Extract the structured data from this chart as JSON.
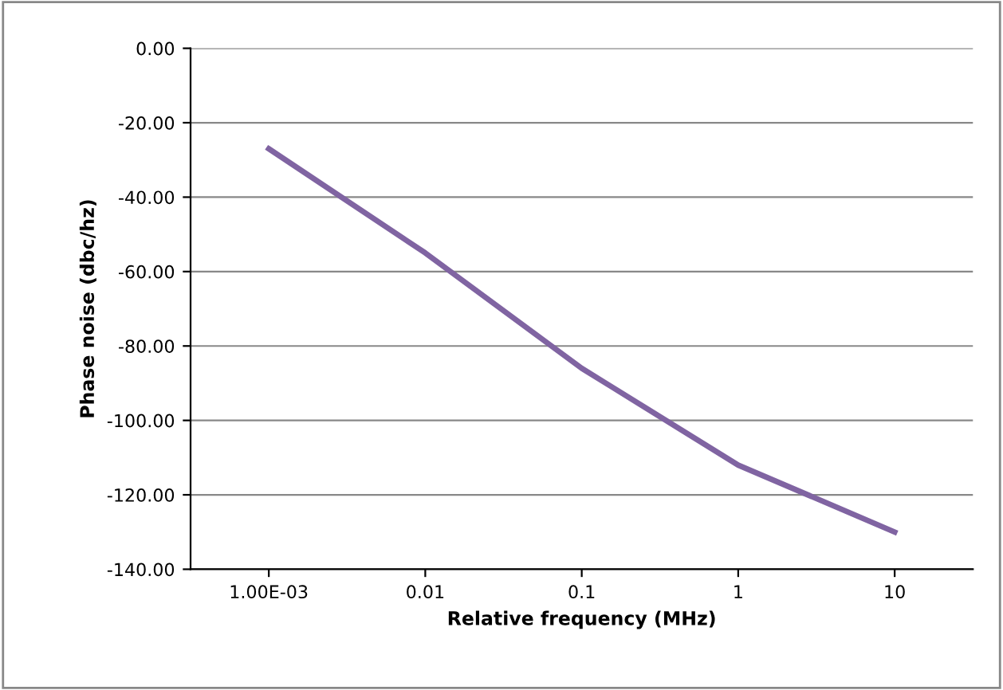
{
  "chart_data": {
    "type": "line",
    "xlabel": "Relative frequency (MHz)",
    "ylabel": "Phase noise (dbc/hz)",
    "categories": [
      "1.00E-03",
      "0.01",
      "0.1",
      "1",
      "10"
    ],
    "series": [
      {
        "color": "#8064a2",
        "values": [
          -27,
          -55,
          -86,
          -112,
          -130
        ]
      }
    ],
    "ylim": [
      -140,
      0
    ],
    "yticks": [
      {
        "value": -140,
        "label": "-140.00"
      },
      {
        "value": -120,
        "label": "-120.00"
      },
      {
        "value": -100,
        "label": "-100.00"
      },
      {
        "value": -80,
        "label": "-80.00"
      },
      {
        "value": -60,
        "label": "-60.00"
      },
      {
        "value": -40,
        "label": "-40.00"
      },
      {
        "value": -20,
        "label": "-20.00"
      },
      {
        "value": 0,
        "label": "0.00"
      }
    ],
    "grid": "y",
    "legend": false,
    "marker": "none",
    "line_style": "solid"
  }
}
